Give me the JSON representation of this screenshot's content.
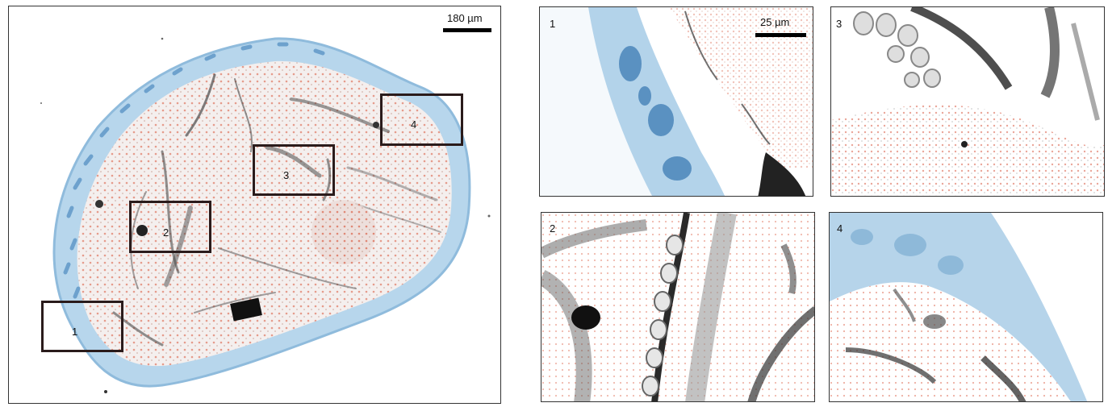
{
  "overview": {
    "scalebar_label": "180 µm",
    "roi_labels": [
      "1",
      "2",
      "3",
      "4"
    ]
  },
  "zoom_panels": {
    "panel_1": {
      "label": "1",
      "scalebar_label": "25 µm"
    },
    "panel_2": {
      "label": "2"
    },
    "panel_3": {
      "label": "3"
    },
    "panel_4": {
      "label": "4"
    }
  },
  "colors": {
    "tissue_blue": "#a9cde6",
    "tissue_blue_dark": "#3e7fb5",
    "stain_red": "#d8553a",
    "structure_gray": "#555555",
    "roi_border": "#2a1b1b"
  }
}
